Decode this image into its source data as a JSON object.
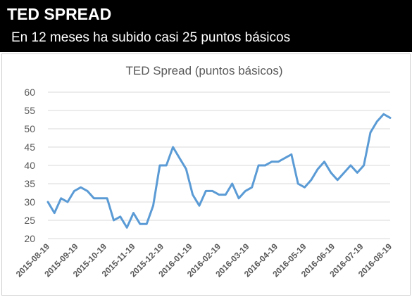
{
  "header": {
    "title": "TED SPREAD",
    "subtitle": "En 12 meses ha subido casi 25 puntos básicos"
  },
  "colors": {
    "banner_bg": "#000000",
    "banner_text": "#ffffff",
    "line": "#5b9bd5",
    "grid": "#d9d9d9",
    "axis_text": "#595959"
  },
  "chart_data": {
    "type": "line",
    "title": "TED Spread (puntos básicos)",
    "xlabel": "",
    "ylabel": "",
    "ylim": [
      20,
      60
    ],
    "y_ticks": [
      20,
      25,
      30,
      35,
      40,
      45,
      50,
      55,
      60
    ],
    "grid": true,
    "legend": "none",
    "x_tick_labels": [
      "2015-08-19",
      "2015-09-19",
      "2015-10-19",
      "2015-11-19",
      "2015-12-19",
      "2016-01-19",
      "2016-02-19",
      "2016-03-19",
      "2016-04-19",
      "2016-05-19",
      "2016-06-19",
      "2016-07-19",
      "2016-08-19"
    ],
    "series": [
      {
        "values": [
          30,
          27,
          31,
          30,
          33,
          34,
          33,
          31,
          31,
          31,
          25,
          26,
          23,
          27,
          24,
          24,
          29,
          40,
          40,
          45,
          42,
          39,
          32,
          29,
          33,
          33,
          32,
          32,
          35,
          31,
          33,
          34,
          40,
          40,
          41,
          41,
          42,
          43,
          35,
          34,
          36,
          39,
          41,
          38,
          36,
          38,
          40,
          38,
          40,
          49,
          52,
          54,
          53
        ]
      }
    ]
  }
}
